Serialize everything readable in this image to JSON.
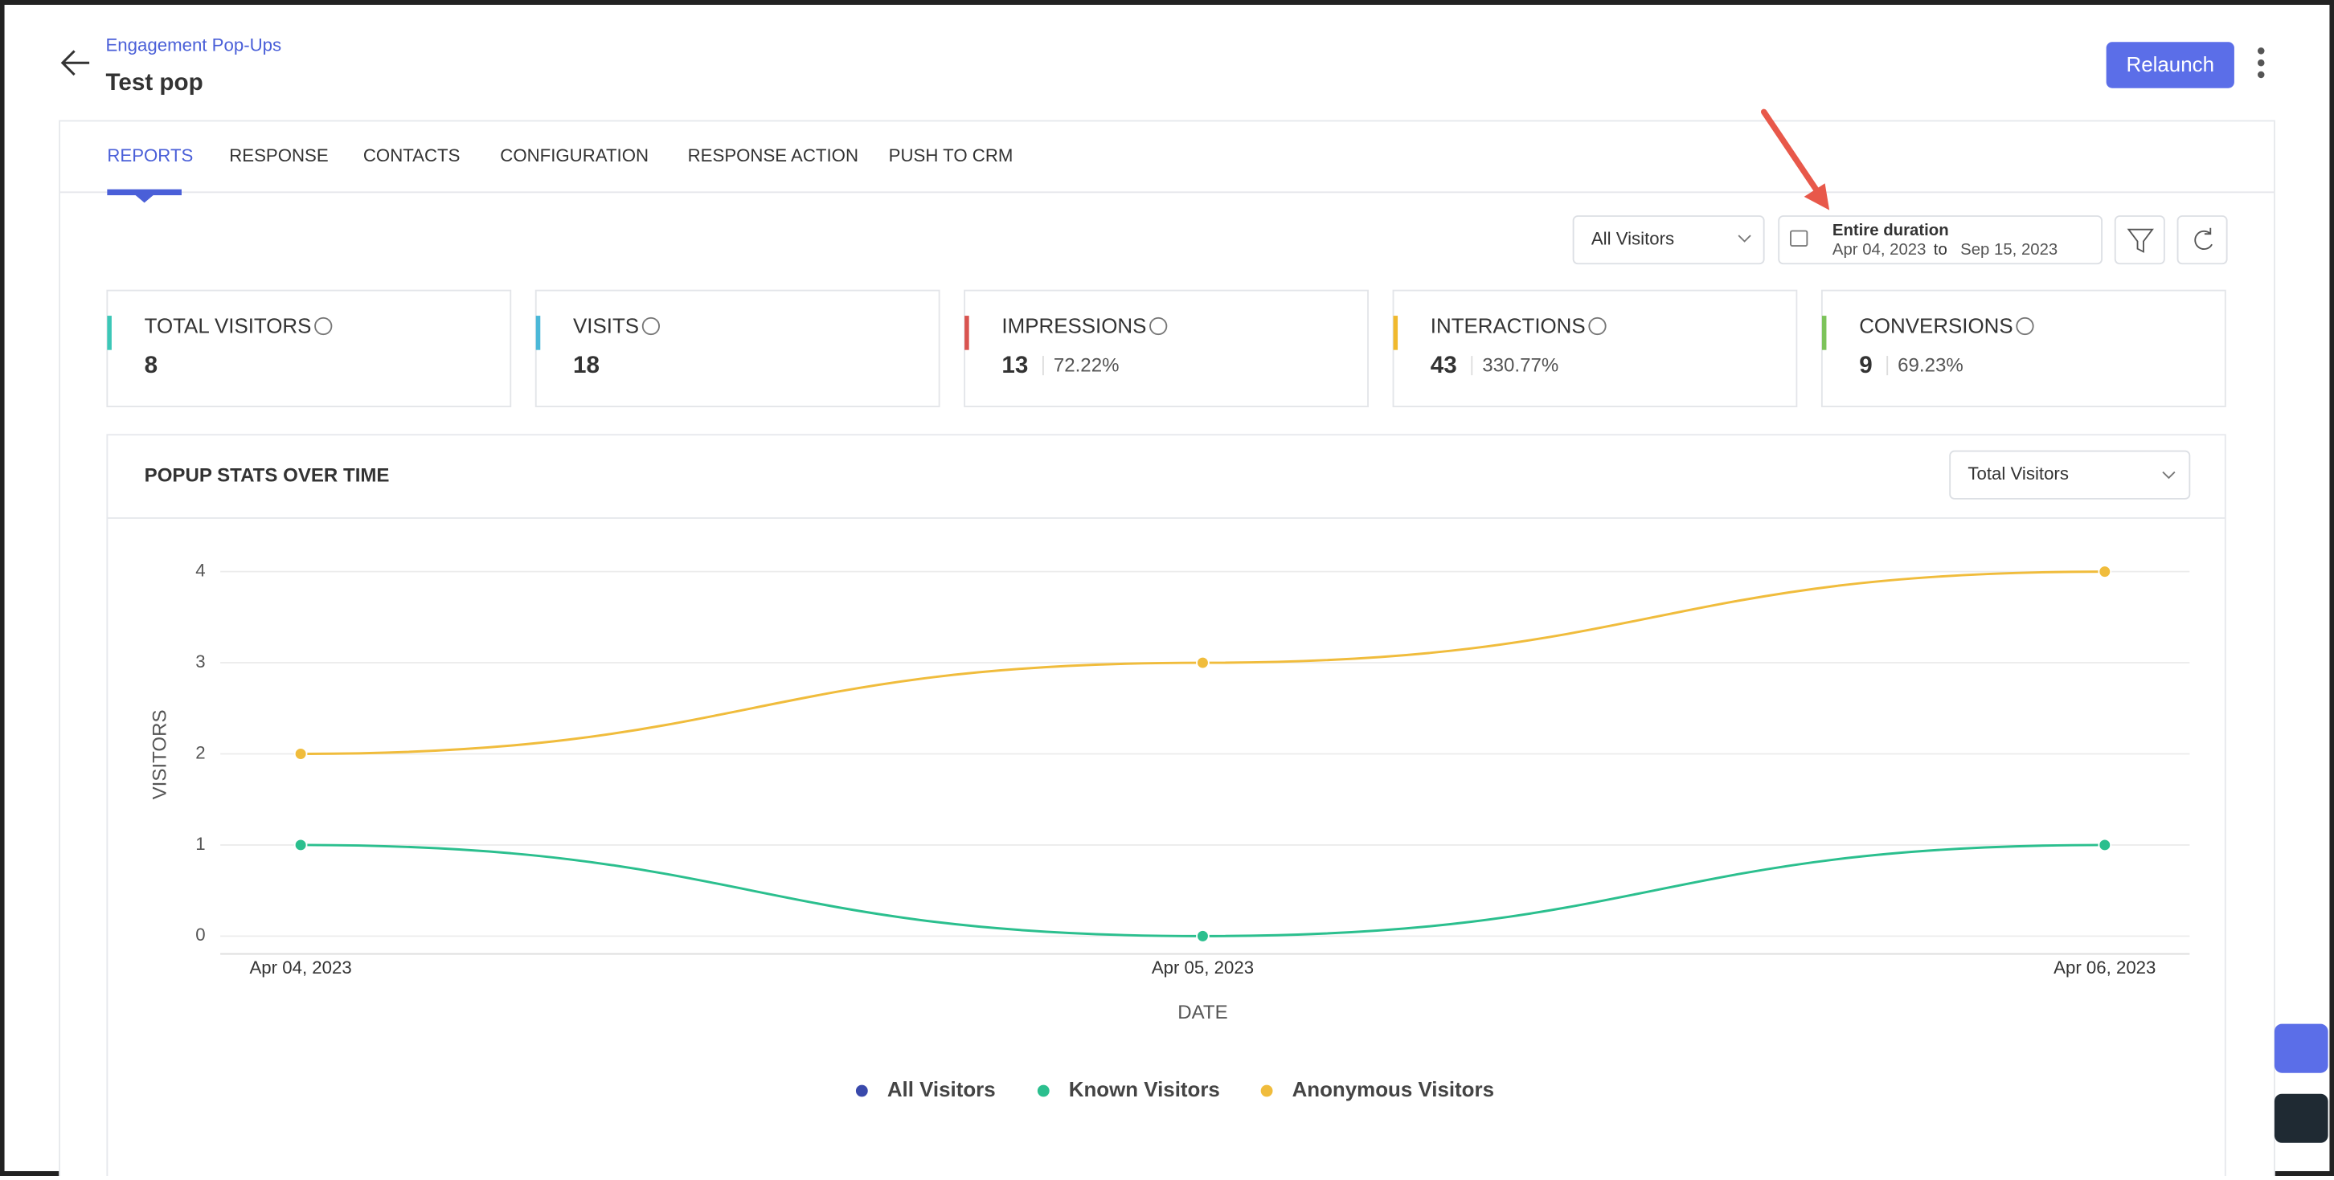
{
  "header": {
    "breadcrumb": "Engagement Pop-Ups",
    "title": "Test pop",
    "button": "Relaunch"
  },
  "tabs": [
    "REPORTS",
    "RESPONSE",
    "CONTACTS",
    "CONFIGURATION",
    "RESPONSE ACTION",
    "PUSH TO CRM"
  ],
  "filters": {
    "audience": "All Visitors",
    "range_title": "Entire duration",
    "from": "Apr 04, 2023",
    "to_word": "to",
    "to": "Sep 15, 2023"
  },
  "cards": [
    {
      "label": "TOTAL VISITORS",
      "value": "8",
      "color": "#3cc7b7"
    },
    {
      "label": "VISITS",
      "value": "18",
      "color": "#4bb8d8"
    },
    {
      "label": "IMPRESSIONS",
      "value": "13",
      "percent": "72.22%",
      "color": "#d9534f"
    },
    {
      "label": "INTERACTIONS",
      "value": "43",
      "percent": "330.77%",
      "color": "#f0b92e"
    },
    {
      "label": "CONVERSIONS",
      "value": "9",
      "percent": "69.23%",
      "color": "#7cc35a"
    }
  ],
  "chart_panel": {
    "title": "POPUP STATS OVER TIME",
    "metric": "Total Visitors"
  },
  "chart_data": {
    "type": "line",
    "xlabel": "DATE",
    "ylabel": "VISITORS",
    "categories": [
      "Apr 04, 2023",
      "Apr 05, 2023",
      "Apr 06, 2023"
    ],
    "series": [
      {
        "name": "All Visitors",
        "color": "#3949ab",
        "values": [
          null,
          null,
          null
        ]
      },
      {
        "name": "Known Visitors",
        "color": "#2bbf8e",
        "values": [
          1,
          0,
          1
        ]
      },
      {
        "name": "Anonymous Visitors",
        "color": "#f0bc3c",
        "values": [
          2,
          3,
          4
        ]
      }
    ],
    "ylim": [
      0,
      4
    ],
    "yticks": [
      0,
      1,
      2,
      3,
      4
    ],
    "grid": true
  }
}
